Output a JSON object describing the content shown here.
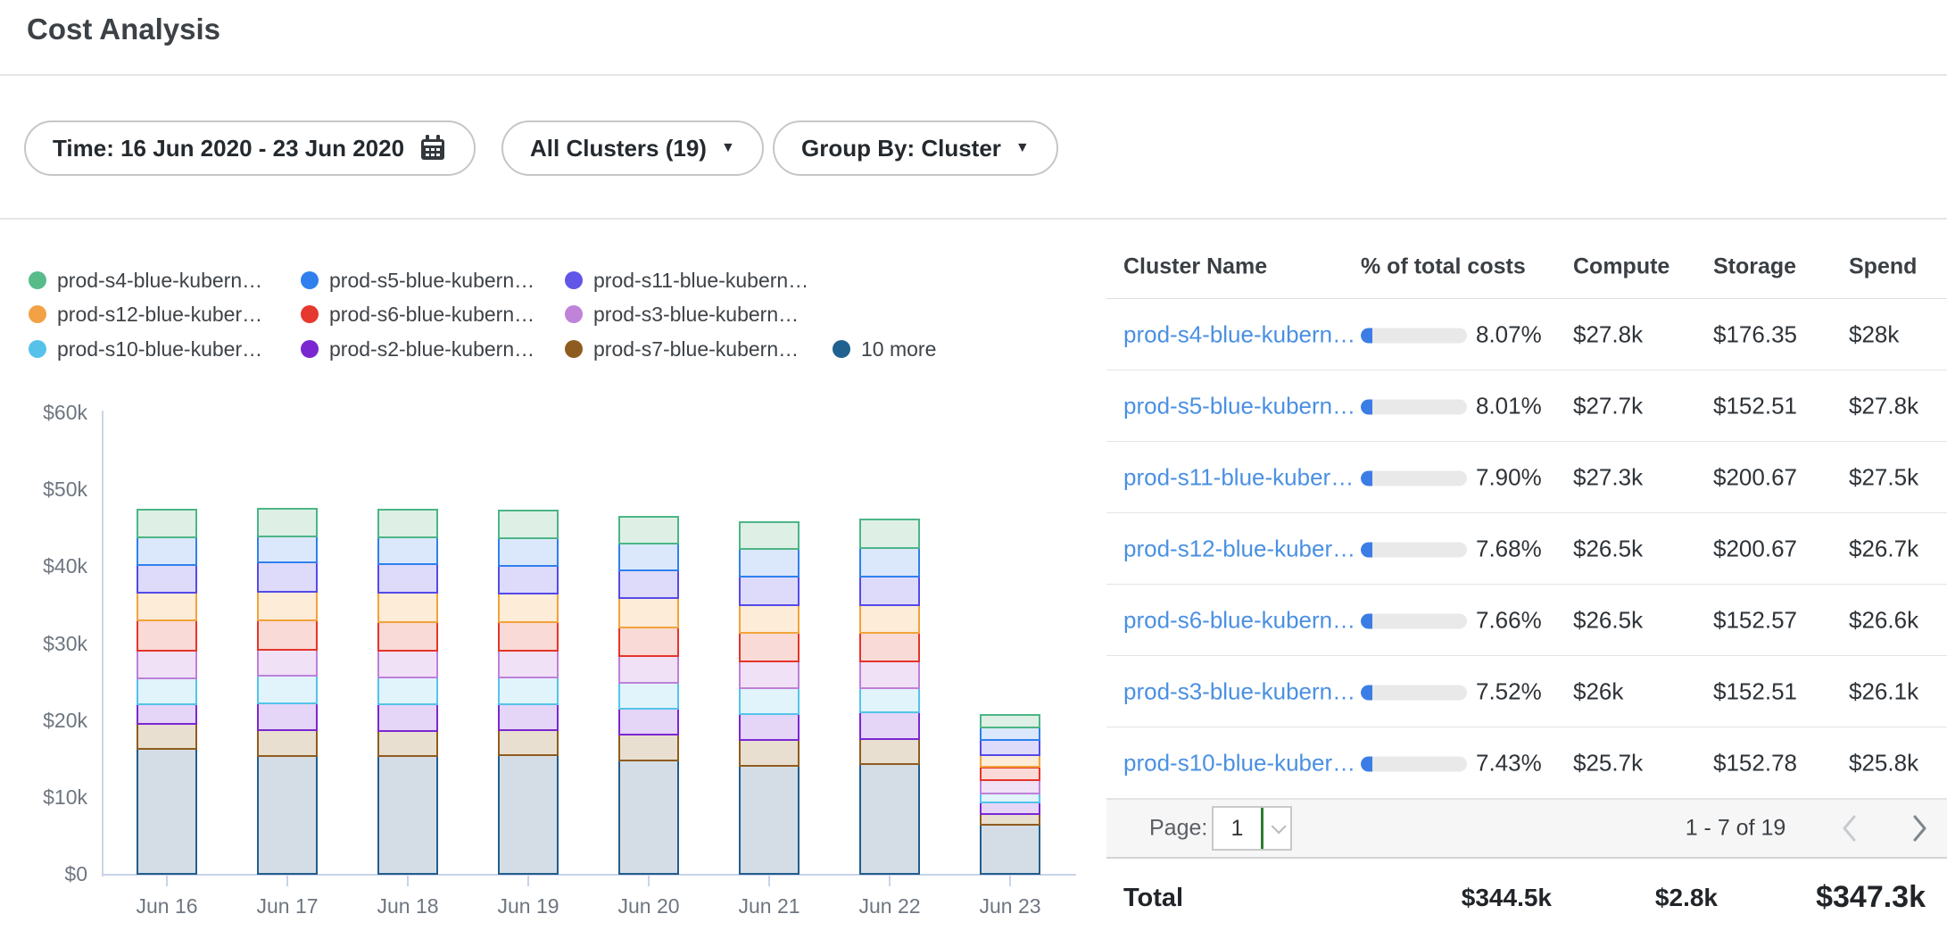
{
  "page": {
    "title": "Cost Analysis"
  },
  "filters": {
    "time": {
      "label": "Time: 16 Jun 2020 - 23 Jun 2020",
      "icon": "calendar-icon"
    },
    "clusters": {
      "label": "All Clusters (19)"
    },
    "group_by": {
      "label": "Group By: Cluster"
    }
  },
  "legend": {
    "items": [
      {
        "label": "prod-s4-blue-kubern…",
        "color": "#57bb8a"
      },
      {
        "label": "prod-s5-blue-kubern…",
        "color": "#2f80ed"
      },
      {
        "label": "prod-s11-blue-kubern…",
        "color": "#6156e8"
      },
      {
        "label": "prod-s12-blue-kuber…",
        "color": "#f2a144"
      },
      {
        "label": "prod-s6-blue-kubern…",
        "color": "#e5382e"
      },
      {
        "label": "prod-s3-blue-kubern…",
        "color": "#c083da"
      },
      {
        "label": "prod-s10-blue-kuber…",
        "color": "#56c2ea"
      },
      {
        "label": "prod-s2-blue-kubern…",
        "color": "#7a27d1"
      },
      {
        "label": "prod-s7-blue-kubern…",
        "color": "#8f5c1f"
      },
      {
        "label": "10 more",
        "color": "#20618f"
      }
    ]
  },
  "chart_data": {
    "type": "bar",
    "stacked": true,
    "x": [
      "Jun 16",
      "Jun 17",
      "Jun 18",
      "Jun 19",
      "Jun 20",
      "Jun 21",
      "Jun 22",
      "Jun 23"
    ],
    "y_unit": "$k",
    "ylim": [
      0,
      60
    ],
    "yticks": [
      {
        "label": "$0",
        "value": 0
      },
      {
        "label": "$10k",
        "value": 10
      },
      {
        "label": "$20k",
        "value": 20
      },
      {
        "label": "$30k",
        "value": 30
      },
      {
        "label": "$40k",
        "value": 40
      },
      {
        "label": "$50k",
        "value": 50
      },
      {
        "label": "$60k",
        "value": 60
      }
    ],
    "series_bottom_to_top": [
      {
        "name": "10 more",
        "color": "#235d8c",
        "fill": "#d4dde6",
        "values": [
          16.5,
          15.6,
          15.6,
          15.7,
          15.0,
          14.3,
          14.5,
          6.6
        ]
      },
      {
        "name": "prod-s7-blue-kubern…",
        "color": "#8f5c1f",
        "fill": "#e9dfd0",
        "values": [
          3.2,
          3.3,
          3.2,
          3.2,
          3.3,
          3.3,
          3.3,
          1.4
        ]
      },
      {
        "name": "prod-s2-blue-kubern…",
        "color": "#7a27d1",
        "fill": "#e5d5f7",
        "values": [
          2.6,
          3.5,
          3.5,
          3.4,
          3.4,
          3.4,
          3.4,
          1.5
        ]
      },
      {
        "name": "prod-s10-blue-kuber…",
        "color": "#54c3ea",
        "fill": "#e1f4fb",
        "values": [
          3.4,
          3.6,
          3.5,
          3.5,
          3.4,
          3.4,
          3.2,
          1.2
        ]
      },
      {
        "name": "prod-s3-blue-kubern…",
        "color": "#bd80d8",
        "fill": "#f0e1f6",
        "values": [
          3.5,
          3.4,
          3.5,
          3.5,
          3.5,
          3.5,
          3.5,
          1.7
        ]
      },
      {
        "name": "prod-s6-blue-kubern…",
        "color": "#e5342b",
        "fill": "#fadad6",
        "values": [
          4.0,
          3.8,
          3.7,
          3.7,
          3.7,
          3.7,
          3.7,
          1.7
        ]
      },
      {
        "name": "prod-s12-blue-kuber…",
        "color": "#f2a33a",
        "fill": "#fdecd8",
        "values": [
          3.6,
          3.7,
          3.8,
          3.7,
          3.8,
          3.6,
          3.6,
          1.6
        ]
      },
      {
        "name": "prod-s11-blue-kubern…",
        "color": "#544ae8",
        "fill": "#dedafa",
        "values": [
          3.6,
          3.8,
          3.7,
          3.6,
          3.6,
          3.7,
          3.7,
          1.9
        ]
      },
      {
        "name": "prod-s5-blue-kubern…",
        "color": "#2f80ed",
        "fill": "#dbe8fc",
        "values": [
          3.6,
          3.4,
          3.5,
          3.6,
          3.5,
          3.6,
          3.7,
          1.7
        ]
      },
      {
        "name": "prod-s4-blue-kubern…",
        "color": "#4cb586",
        "fill": "#def0e5",
        "values": [
          3.6,
          3.6,
          3.6,
          3.6,
          3.4,
          3.5,
          3.7,
          1.6
        ]
      }
    ],
    "legend_position": "top-left",
    "grid": false
  },
  "table": {
    "columns": [
      "Cluster Name",
      "% of total costs",
      "Compute",
      "Storage",
      "Spend"
    ],
    "rows": [
      {
        "name": "prod-s4-blue-kubern…",
        "pct": "8.07%",
        "pct_value": 8.07,
        "compute": "$27.8k",
        "storage": "$176.35",
        "spend": "$28k"
      },
      {
        "name": "prod-s5-blue-kubern…",
        "pct": "8.01%",
        "pct_value": 8.01,
        "compute": "$27.7k",
        "storage": "$152.51",
        "spend": "$27.8k"
      },
      {
        "name": "prod-s11-blue-kuber…",
        "pct": "7.90%",
        "pct_value": 7.9,
        "compute": "$27.3k",
        "storage": "$200.67",
        "spend": "$27.5k"
      },
      {
        "name": "prod-s12-blue-kuber…",
        "pct": "7.68%",
        "pct_value": 7.68,
        "compute": "$26.5k",
        "storage": "$200.67",
        "spend": "$26.7k"
      },
      {
        "name": "prod-s6-blue-kubern…",
        "pct": "7.66%",
        "pct_value": 7.66,
        "compute": "$26.5k",
        "storage": "$152.57",
        "spend": "$26.6k"
      },
      {
        "name": "prod-s3-blue-kubern…",
        "pct": "7.52%",
        "pct_value": 7.52,
        "compute": "$26k",
        "storage": "$152.51",
        "spend": "$26.1k"
      },
      {
        "name": "prod-s10-blue-kuber…",
        "pct": "7.43%",
        "pct_value": 7.43,
        "compute": "$25.7k",
        "storage": "$152.78",
        "spend": "$25.8k"
      }
    ],
    "pagination": {
      "page_label": "Page:",
      "page_value": "1",
      "range": "1 - 7 of 19"
    },
    "totals": {
      "label": "Total",
      "compute": "$344.5k",
      "storage": "$2.8k",
      "spend": "$347.3k"
    }
  },
  "colors": {
    "link": "#4a90e2",
    "progress_fill": "#3b7de4",
    "progress_track": "#e9e9e9",
    "axis": "#c9d3ea",
    "axis_text": "#6e7680"
  }
}
